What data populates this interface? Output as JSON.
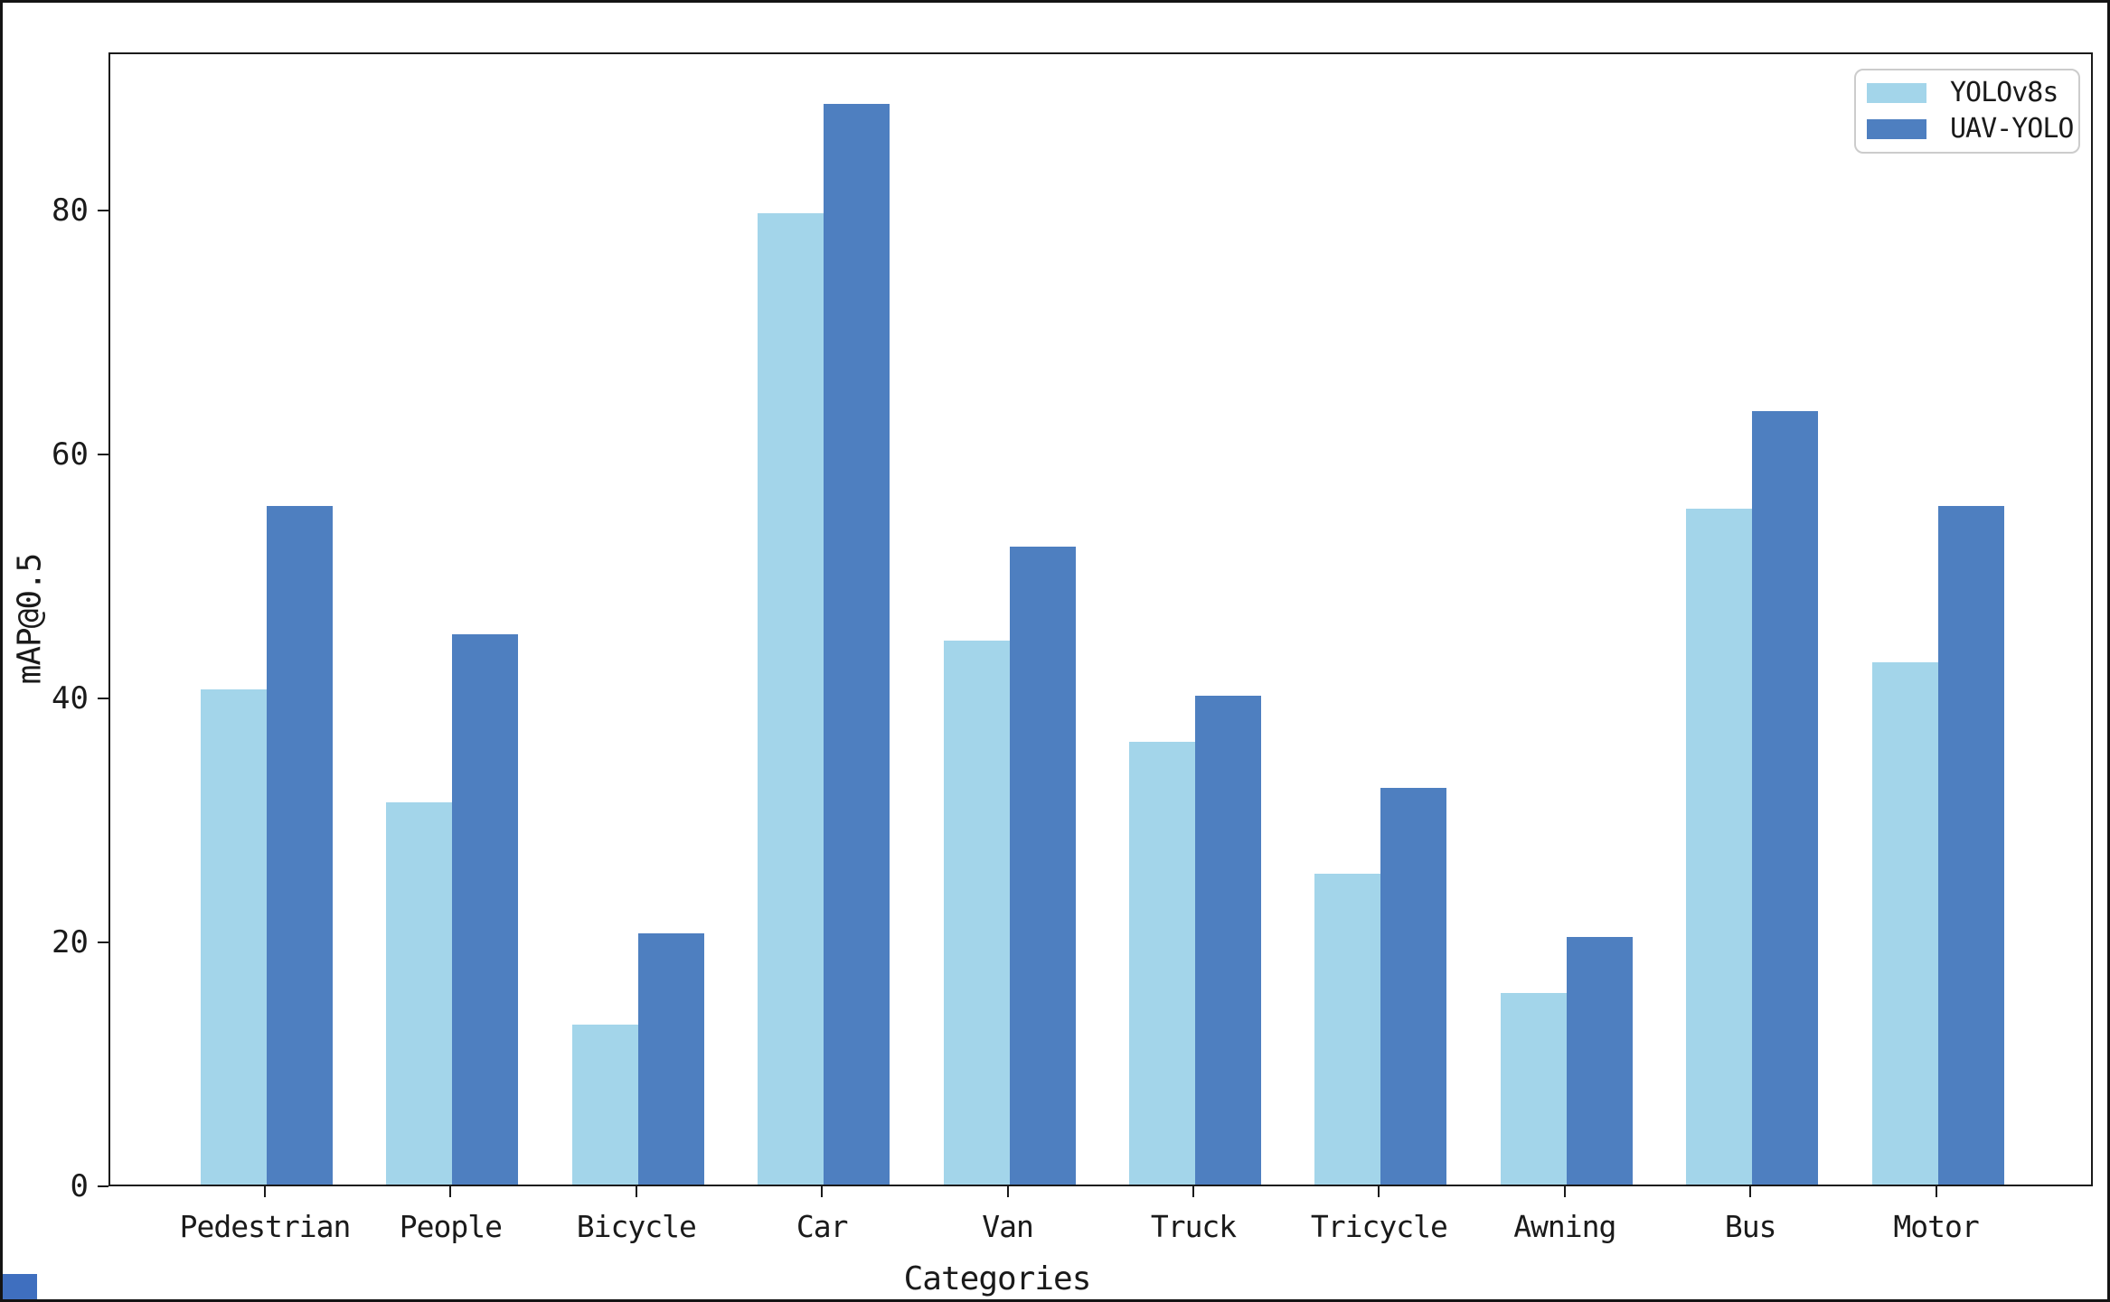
{
  "figure": {
    "y_ticks": [
      0,
      20,
      40,
      60,
      80
    ]
  },
  "chart_data": {
    "type": "bar",
    "title": "",
    "xlabel": "Categories",
    "ylabel": "mAP@0.5",
    "categories": [
      "Pedestrian",
      "People",
      "Bicycle",
      "Car",
      "Van",
      "Truck",
      "Tricycle",
      "Awning",
      "Bus",
      "Motor"
    ],
    "series": [
      {
        "name": "YOLOv8s",
        "color": "#a3d5ea",
        "values": [
          40.6,
          31.3,
          13.1,
          79.6,
          44.6,
          36.3,
          25.5,
          15.7,
          55.4,
          42.8
        ]
      },
      {
        "name": "UAV-YOLO",
        "color": "#4e7fc0",
        "values": [
          55.6,
          45.1,
          20.6,
          88.6,
          52.3,
          40.1,
          32.5,
          20.3,
          63.4,
          55.6
        ]
      }
    ],
    "ylim": [
      0,
      93
    ],
    "y_tick_values": [
      0,
      20,
      40,
      60,
      80
    ],
    "grid": false,
    "legend_position": "upper right",
    "corner_artifact_color": "#3f6fbf"
  }
}
